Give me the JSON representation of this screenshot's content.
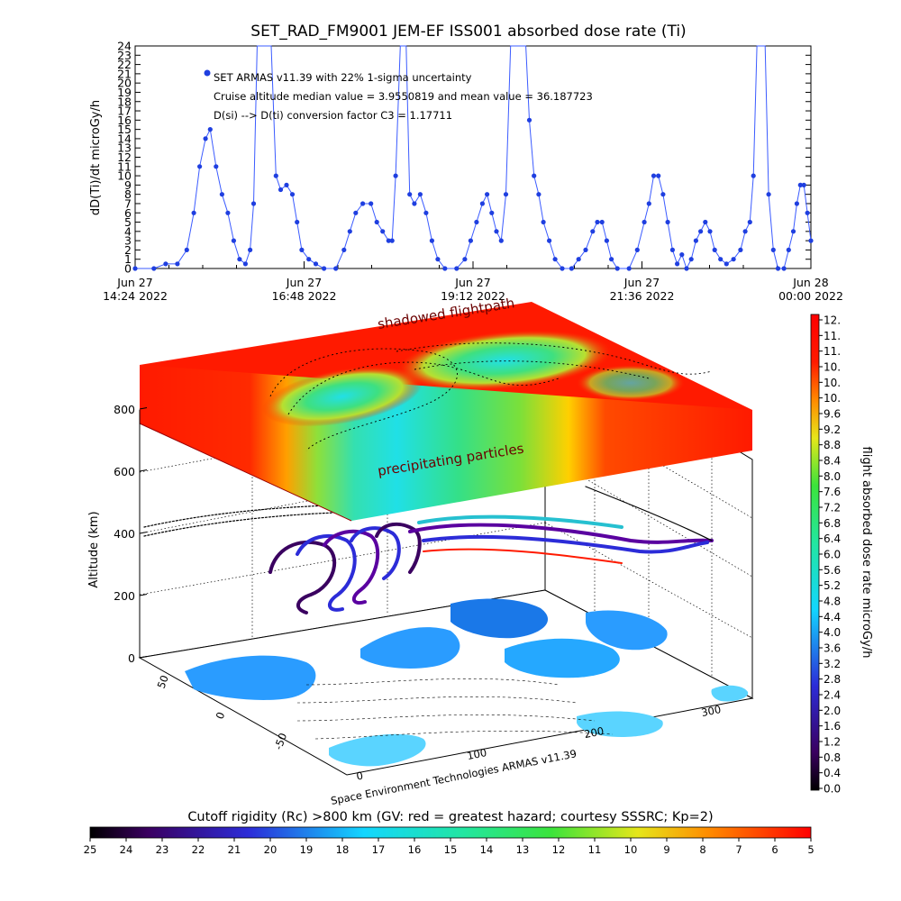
{
  "title": "SET_RAD_FM9001  JEM-EF ISS001 absorbed dose rate (Ti)",
  "colors": {
    "series": "#1f3fe0",
    "spike_line": "#3b5bff",
    "red": "#ff1a00",
    "red_dark": "#c40000"
  },
  "chart_data": [
    {
      "type": "line",
      "ylabel": "dD(Ti)/dt microGy/h",
      "ylim": [
        0,
        24
      ],
      "yticks": [
        "0",
        "1",
        "2",
        "3",
        "4",
        "5",
        "6",
        "7",
        "8",
        "9",
        "10",
        "11",
        "12",
        "13",
        "14",
        "15",
        "16",
        "17",
        "18",
        "19",
        "20",
        "21",
        "22",
        "23",
        "24"
      ],
      "xlim": [
        "2022-06-27 14:24",
        "2022-06-28 00:00"
      ],
      "xticks": [
        {
          "x": "2022-06-27 14:24",
          "line1": "Jun 27",
          "line2": "14:24 2022"
        },
        {
          "x": "2022-06-27 16:48",
          "line1": "Jun 27",
          "line2": "16:48 2022"
        },
        {
          "x": "2022-06-27 19:12",
          "line1": "Jun 27",
          "line2": "19:12 2022"
        },
        {
          "x": "2022-06-27 21:36",
          "line1": "Jun 27",
          "line2": "21:36 2022"
        },
        {
          "x": "2022-06-28 00:00",
          "line1": "Jun 28",
          "line2": "00:00 2022"
        }
      ],
      "annotations": [
        "SET ARMAS v11.39 with 22% 1-sigma uncertainty",
        "Cruise altitude median value = 3.9550819 and mean value = 36.187723",
        "D(si) --> D(ti) conversion factor C3 = 1.17711"
      ],
      "series": [
        {
          "values": [
            [
              "2022-06-27 14:24",
              0
            ],
            [
              "2022-06-27 14:40",
              0
            ],
            [
              "2022-06-27 14:50",
              0.5
            ],
            [
              "2022-06-27 15:00",
              0.5
            ],
            [
              "2022-06-27 15:08",
              2
            ],
            [
              "2022-06-27 15:14",
              6
            ],
            [
              "2022-06-27 15:19",
              11
            ],
            [
              "2022-06-27 15:24",
              14
            ],
            [
              "2022-06-27 15:28",
              15
            ],
            [
              "2022-06-27 15:33",
              11
            ],
            [
              "2022-06-27 15:38",
              8
            ],
            [
              "2022-06-27 15:43",
              6
            ],
            [
              "2022-06-27 15:48",
              3
            ],
            [
              "2022-06-27 15:53",
              1
            ],
            [
              "2022-06-27 15:58",
              0.5
            ],
            [
              "2022-06-27 16:02",
              2
            ],
            [
              "2022-06-27 16:05",
              7
            ],
            [
              "2022-06-27 16:08",
              24
            ],
            [
              "2022-06-27 16:15",
              24
            ],
            [
              "2022-06-27 16:20",
              24
            ],
            [
              "2022-06-27 16:24",
              10
            ],
            [
              "2022-06-27 16:28",
              8.5
            ],
            [
              "2022-06-27 16:33",
              9
            ],
            [
              "2022-06-27 16:38",
              8
            ],
            [
              "2022-06-27 16:42",
              5
            ],
            [
              "2022-06-27 16:46",
              2
            ],
            [
              "2022-06-27 16:52",
              1
            ],
            [
              "2022-06-27 16:58",
              0.5
            ],
            [
              "2022-06-27 17:05",
              0
            ],
            [
              "2022-06-27 17:15",
              0
            ],
            [
              "2022-06-27 17:22",
              2
            ],
            [
              "2022-06-27 17:27",
              4
            ],
            [
              "2022-06-27 17:32",
              6
            ],
            [
              "2022-06-27 17:38",
              7
            ],
            [
              "2022-06-27 17:45",
              7
            ],
            [
              "2022-06-27 17:50",
              5
            ],
            [
              "2022-06-27 17:55",
              4
            ],
            [
              "2022-06-27 18:00",
              3
            ],
            [
              "2022-06-27 18:03",
              3
            ],
            [
              "2022-06-27 18:06",
              10
            ],
            [
              "2022-06-27 18:10",
              24
            ],
            [
              "2022-06-27 18:15",
              24
            ],
            [
              "2022-06-27 18:18",
              8
            ],
            [
              "2022-06-27 18:22",
              7
            ],
            [
              "2022-06-27 18:27",
              8
            ],
            [
              "2022-06-27 18:32",
              6
            ],
            [
              "2022-06-27 18:37",
              3
            ],
            [
              "2022-06-27 18:42",
              1
            ],
            [
              "2022-06-27 18:48",
              0
            ],
            [
              "2022-06-27 18:58",
              0
            ],
            [
              "2022-06-27 19:05",
              1
            ],
            [
              "2022-06-27 19:10",
              3
            ],
            [
              "2022-06-27 19:15",
              5
            ],
            [
              "2022-06-27 19:20",
              7
            ],
            [
              "2022-06-27 19:24",
              8
            ],
            [
              "2022-06-27 19:28",
              6
            ],
            [
              "2022-06-27 19:32",
              4
            ],
            [
              "2022-06-27 19:36",
              3
            ],
            [
              "2022-06-27 19:40",
              8
            ],
            [
              "2022-06-27 19:44",
              24
            ],
            [
              "2022-06-27 19:52",
              24
            ],
            [
              "2022-06-27 19:57",
              24
            ],
            [
              "2022-06-27 20:00",
              16
            ],
            [
              "2022-06-27 20:04",
              10
            ],
            [
              "2022-06-27 20:08",
              8
            ],
            [
              "2022-06-27 20:12",
              5
            ],
            [
              "2022-06-27 20:17",
              3
            ],
            [
              "2022-06-27 20:22",
              1
            ],
            [
              "2022-06-27 20:28",
              0
            ],
            [
              "2022-06-27 20:36",
              0
            ],
            [
              "2022-06-27 20:42",
              1
            ],
            [
              "2022-06-27 20:48",
              2
            ],
            [
              "2022-06-27 20:54",
              4
            ],
            [
              "2022-06-27 20:58",
              5
            ],
            [
              "2022-06-27 21:02",
              5
            ],
            [
              "2022-06-27 21:06",
              3
            ],
            [
              "2022-06-27 21:10",
              1
            ],
            [
              "2022-06-27 21:15",
              0
            ],
            [
              "2022-06-27 21:25",
              0
            ],
            [
              "2022-06-27 21:32",
              2
            ],
            [
              "2022-06-27 21:38",
              5
            ],
            [
              "2022-06-27 21:42",
              7
            ],
            [
              "2022-06-27 21:46",
              10
            ],
            [
              "2022-06-27 21:50",
              10
            ],
            [
              "2022-06-27 21:54",
              8
            ],
            [
              "2022-06-27 21:58",
              5
            ],
            [
              "2022-06-27 22:02",
              2
            ],
            [
              "2022-06-27 22:06",
              0.5
            ],
            [
              "2022-06-27 22:10",
              1.5
            ],
            [
              "2022-06-27 22:14",
              0
            ],
            [
              "2022-06-27 22:18",
              1
            ],
            [
              "2022-06-27 22:22",
              3
            ],
            [
              "2022-06-27 22:26",
              4
            ],
            [
              "2022-06-27 22:30",
              5
            ],
            [
              "2022-06-27 22:34",
              4
            ],
            [
              "2022-06-27 22:38",
              2
            ],
            [
              "2022-06-27 22:43",
              1
            ],
            [
              "2022-06-27 22:48",
              0.5
            ],
            [
              "2022-06-27 22:54",
              1
            ],
            [
              "2022-06-27 23:00",
              2
            ],
            [
              "2022-06-27 23:04",
              4
            ],
            [
              "2022-06-27 23:08",
              5
            ],
            [
              "2022-06-27 23:11",
              10
            ],
            [
              "2022-06-27 23:14",
              24
            ],
            [
              "2022-06-27 23:18",
              24
            ],
            [
              "2022-06-27 23:21",
              24
            ],
            [
              "2022-06-27 23:24",
              8
            ],
            [
              "2022-06-27 23:28",
              2
            ],
            [
              "2022-06-27 23:32",
              0
            ],
            [
              "2022-06-27 23:37",
              0
            ],
            [
              "2022-06-27 23:41",
              2
            ],
            [
              "2022-06-27 23:45",
              4
            ],
            [
              "2022-06-27 23:48",
              7
            ],
            [
              "2022-06-27 23:51",
              9
            ],
            [
              "2022-06-27 23:54",
              9
            ],
            [
              "2022-06-27 23:57",
              6
            ],
            [
              "2022-06-28 00:00",
              3
            ]
          ]
        }
      ]
    },
    {
      "type": "heatmap",
      "ylabel": "Altitude (km)",
      "zticks": [
        "0",
        "200",
        "400",
        "600",
        "800"
      ],
      "lat_ticks": [
        "50",
        "0",
        "-50"
      ],
      "lon_ticks": [
        "0",
        "100",
        "200",
        "300"
      ],
      "labels": [
        "shadowed flightpath",
        "precipitating particles"
      ],
      "credit": "Space Environment Technologies ARMAS v11.39",
      "colorbar": {
        "label": "flight absorbed dose rate microGy/h",
        "ticks": [
          "12.",
          "11.",
          "11.",
          "10.",
          "10.",
          "10.",
          "9.6",
          "9.2",
          "8.8",
          "8.4",
          "8.0",
          "7.6",
          "7.2",
          "6.8",
          "6.4",
          "6.0",
          "5.6",
          "5.2",
          "4.8",
          "4.4",
          "4.0",
          "3.6",
          "3.2",
          "2.8",
          "2.4",
          "2.0",
          "1.6",
          "1.2",
          "0.8",
          "0.4",
          "0.0"
        ]
      },
      "cutoff_bar": {
        "label": "Cutoff rigidity (Rc) >800 km (GV: red = greatest hazard; courtesy SSSRC; Kp=2)",
        "ticks": [
          "25",
          "24",
          "23",
          "22",
          "21",
          "20",
          "19",
          "18",
          "17",
          "16",
          "15",
          "14",
          "13",
          "12",
          "11",
          "10",
          "9",
          "8",
          "7",
          "6",
          "5"
        ]
      }
    }
  ]
}
